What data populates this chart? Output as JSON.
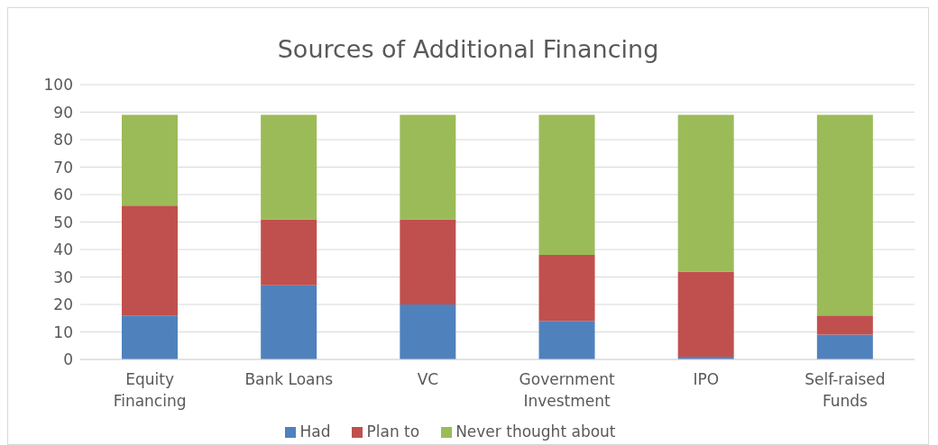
{
  "chart_data": {
    "type": "bar",
    "title": "Sources of Additional Financing",
    "categories": [
      "Equity Financing",
      "Bank Loans",
      "VC",
      "Government Investment",
      "IPO",
      "Self-raised Funds"
    ],
    "stacked": true,
    "series": [
      {
        "name": "Had",
        "color": "#4f81bd",
        "values": [
          16,
          27,
          20,
          14,
          1,
          9
        ]
      },
      {
        "name": "Plan to",
        "color": "#c0504d",
        "values": [
          40,
          24,
          31,
          24,
          31,
          7
        ]
      },
      {
        "name": "Never thought about",
        "color": "#9bbb59",
        "values": [
          33,
          38,
          38,
          51,
          57,
          73
        ]
      }
    ],
    "ylim": [
      0,
      100
    ],
    "yticks": [
      0,
      10,
      20,
      30,
      40,
      50,
      60,
      70,
      80,
      90,
      100
    ],
    "grid": "y",
    "legend": "bottom"
  }
}
